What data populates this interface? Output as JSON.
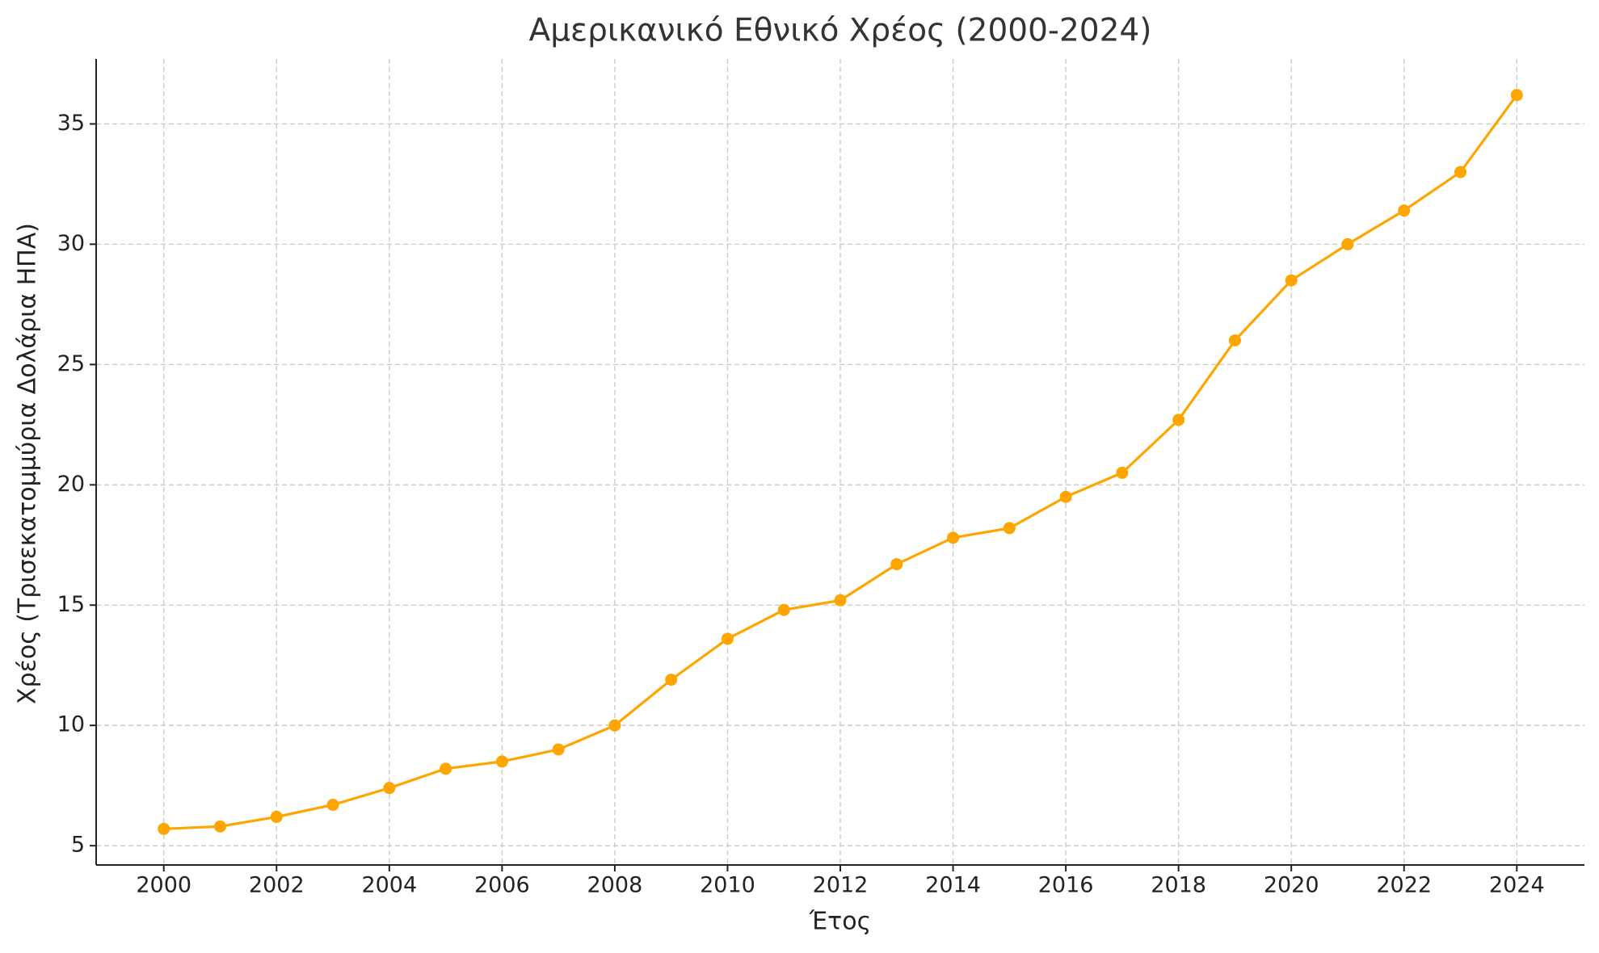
{
  "chart_data": {
    "type": "line",
    "title": "Αμερικανικό Εθνικό Χρέος (2000-2024)",
    "x_label": "Έτος",
    "y_label": "Χρέος (Τρισεκατομμύρια Δολάρια ΗΠΑ)",
    "x": [
      2000,
      2001,
      2002,
      2003,
      2004,
      2005,
      2006,
      2007,
      2008,
      2009,
      2010,
      2011,
      2012,
      2013,
      2014,
      2015,
      2016,
      2017,
      2018,
      2019,
      2020,
      2021,
      2022,
      2023,
      2024
    ],
    "values": [
      5.7,
      5.8,
      6.2,
      6.7,
      7.4,
      8.2,
      8.5,
      9.0,
      10.0,
      11.9,
      13.6,
      14.8,
      15.2,
      16.7,
      17.8,
      18.2,
      19.5,
      20.5,
      22.7,
      26.0,
      28.5,
      30.0,
      31.4,
      33.0,
      36.2
    ],
    "color": "#ffa500",
    "xlim": [
      1998.8,
      2025.2
    ],
    "ylim": [
      4.2,
      37.7
    ],
    "xticks": [
      2000,
      2002,
      2004,
      2006,
      2008,
      2010,
      2012,
      2014,
      2016,
      2018,
      2020,
      2022,
      2024
    ],
    "yticks": [
      5,
      10,
      15,
      20,
      25,
      30,
      35
    ],
    "grid": true
  }
}
